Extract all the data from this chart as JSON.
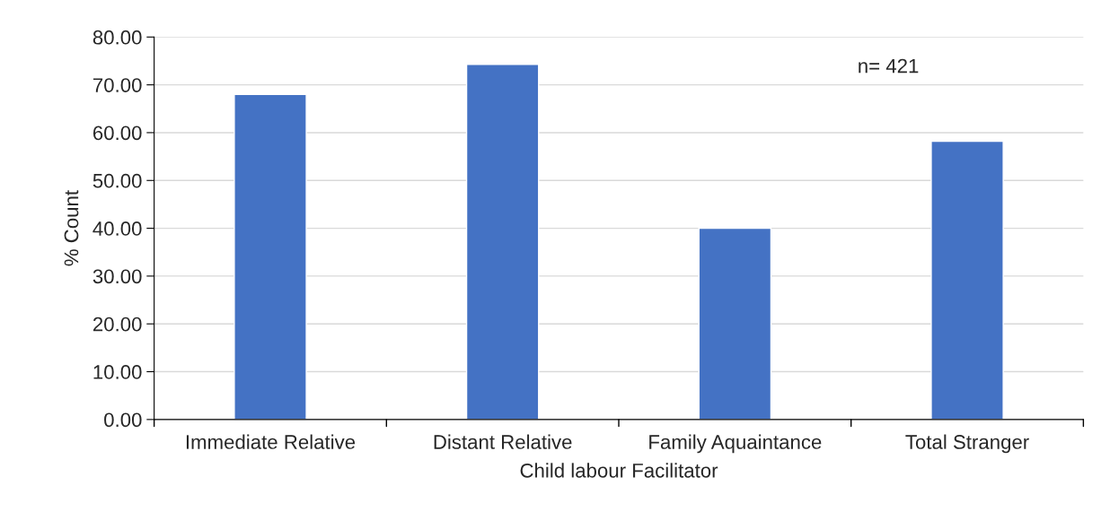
{
  "chart_data": {
    "type": "bar",
    "xlabel": "Child labour Facilitator",
    "ylabel": "% Count",
    "categories": [
      "Immediate Relative",
      "Distant Relative",
      "Family Aquaintance",
      "Total Stranger"
    ],
    "values": [
      68.0,
      74.3,
      40.0,
      58.2
    ],
    "color": "#4472c4",
    "ylim": [
      0,
      80
    ],
    "yticks": [
      {
        "value": 0,
        "label": "0.00"
      },
      {
        "value": 10,
        "label": "10.00"
      },
      {
        "value": 20,
        "label": "20.00"
      },
      {
        "value": 30,
        "label": "30.00"
      },
      {
        "value": 40,
        "label": "40.00"
      },
      {
        "value": 50,
        "label": "50.00"
      },
      {
        "value": 60,
        "label": "60.00"
      },
      {
        "value": 70,
        "label": "70.00"
      },
      {
        "value": 80,
        "label": "80.00"
      }
    ],
    "grid": "y",
    "legend": false,
    "annotations": [
      "n= 421"
    ]
  }
}
